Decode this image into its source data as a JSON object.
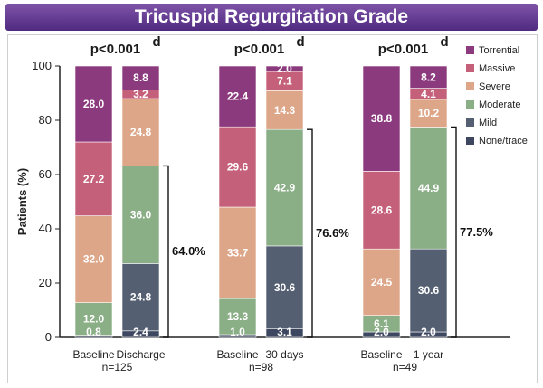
{
  "title": "Tricuspid Regurgitation Grade",
  "colors": {
    "title_bg": "#5e3591",
    "torrential": "#8b3a7e",
    "massive": "#c5607a",
    "severe": "#dea688",
    "moderate": "#8aae86",
    "mild": "#555f72",
    "none_trace": "#3d4860"
  },
  "chart_data": {
    "type": "bar",
    "stacked": true,
    "ylabel": "Patients (%)",
    "ylim": [
      0,
      100
    ],
    "yticks": [
      0,
      20,
      40,
      60,
      80,
      100
    ],
    "legend_position": "top-right",
    "series_order": [
      "None/trace",
      "Mild",
      "Moderate",
      "Severe",
      "Massive",
      "Torrential"
    ],
    "groups": [
      {
        "p_value": "p<0.001",
        "p_superscript": "d",
        "n_label": "n=125",
        "bracket_label": "64.0%",
        "bars": [
          {
            "label": "Baseline",
            "values": {
              "None/trace": 0.8,
              "Mild": null,
              "Moderate": 12.0,
              "Severe": 32.0,
              "Massive": 27.2,
              "Torrential": 28.0
            },
            "labels": {
              "None/trace": "0.8",
              "Moderate": "12.0",
              "Severe": "32.0",
              "Massive": "27.2",
              "Torrential": "28.0"
            }
          },
          {
            "label": "Discharge",
            "values": {
              "None/trace": 2.4,
              "Mild": 24.8,
              "Moderate": 36.0,
              "Severe": 24.8,
              "Massive": 3.2,
              "Torrential": 8.8
            },
            "labels": {
              "None/trace": "2.4",
              "Mild": "24.8",
              "Moderate": "36.0",
              "Severe": "24.8",
              "Massive": "3.2",
              "Torrential": "8.8"
            }
          }
        ]
      },
      {
        "p_value": "p<0.001",
        "p_superscript": "d",
        "n_label": "n=98",
        "bracket_label": "76.6%",
        "bars": [
          {
            "label": "Baseline",
            "values": {
              "None/trace": 1.0,
              "Mild": null,
              "Moderate": 13.3,
              "Severe": 33.7,
              "Massive": 29.6,
              "Torrential": 22.4
            },
            "labels": {
              "None/trace": "1.0",
              "Moderate": "13.3",
              "Severe": "33.7",
              "Massive": "29.6",
              "Torrential": "22.4"
            }
          },
          {
            "label": "30 days",
            "values": {
              "None/trace": 3.1,
              "Mild": 30.6,
              "Moderate": 42.9,
              "Severe": 14.3,
              "Massive": 7.1,
              "Torrential": 2.0
            },
            "labels": {
              "None/trace": "3.1",
              "Mild": "30.6",
              "Moderate": "42.9",
              "Severe": "14.3",
              "Massive": "7.1",
              "Torrential": "2.0"
            }
          }
        ]
      },
      {
        "p_value": "p<0.001",
        "p_superscript": "d",
        "n_label": "n=49",
        "bracket_label": "77.5%",
        "bars": [
          {
            "label": "Baseline",
            "values": {
              "None/trace": 2.0,
              "Mild": null,
              "Moderate": 6.1,
              "Severe": 24.5,
              "Massive": 28.6,
              "Torrential": 38.8
            },
            "labels": {
              "None/trace": "2.0",
              "Moderate": "6.1",
              "Severe": "24.5",
              "Massive": "28.6",
              "Torrential": "38.8"
            }
          },
          {
            "label": "1 year",
            "values": {
              "None/trace": 2.0,
              "Mild": 30.6,
              "Moderate": 44.9,
              "Severe": 10.2,
              "Massive": 4.1,
              "Torrential": 8.2
            },
            "labels": {
              "None/trace": "2.0",
              "Mild": "30.6",
              "Moderate": "44.9",
              "Severe": "10.2",
              "Massive": "4.1",
              "Torrential": "8.2"
            }
          }
        ]
      }
    ],
    "legend": [
      "Torrential",
      "Massive",
      "Severe",
      "Moderate",
      "Mild",
      "None/trace"
    ]
  }
}
